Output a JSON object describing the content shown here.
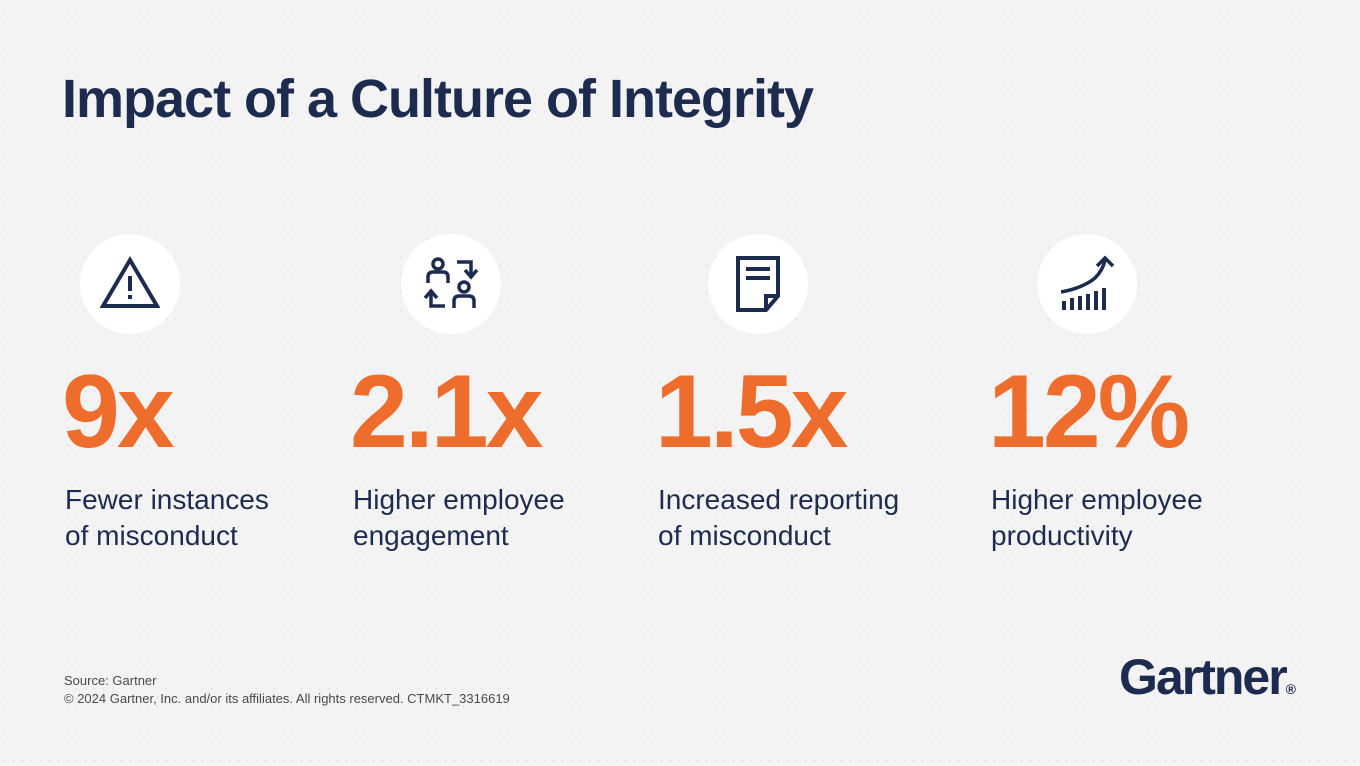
{
  "colors": {
    "navy": "#1d2b4e",
    "orange": "#ee6d2d",
    "background": "#f3f3f3",
    "icon_circle": "#ffffff"
  },
  "title": "Impact of a Culture of Integrity",
  "stats": [
    {
      "icon": "warning-triangle-icon",
      "value": "9x",
      "description_lines": [
        "Fewer instances",
        "of misconduct"
      ]
    },
    {
      "icon": "people-exchange-icon",
      "value": "2.1x",
      "description_lines": [
        "Higher employee",
        "engagement"
      ]
    },
    {
      "icon": "document-icon",
      "value": "1.5x",
      "description_lines": [
        "Increased reporting",
        "of misconduct"
      ]
    },
    {
      "icon": "growth-chart-icon",
      "value": "12%",
      "description_lines": [
        "Higher employee",
        "productivity"
      ]
    }
  ],
  "footer": {
    "source": "Source: Gartner",
    "copyright": "© 2024 Gartner, Inc. and/or its affiliates. All rights reserved. CTMKT_3316619"
  },
  "logo": {
    "text": "Gartner",
    "mark": "®"
  }
}
